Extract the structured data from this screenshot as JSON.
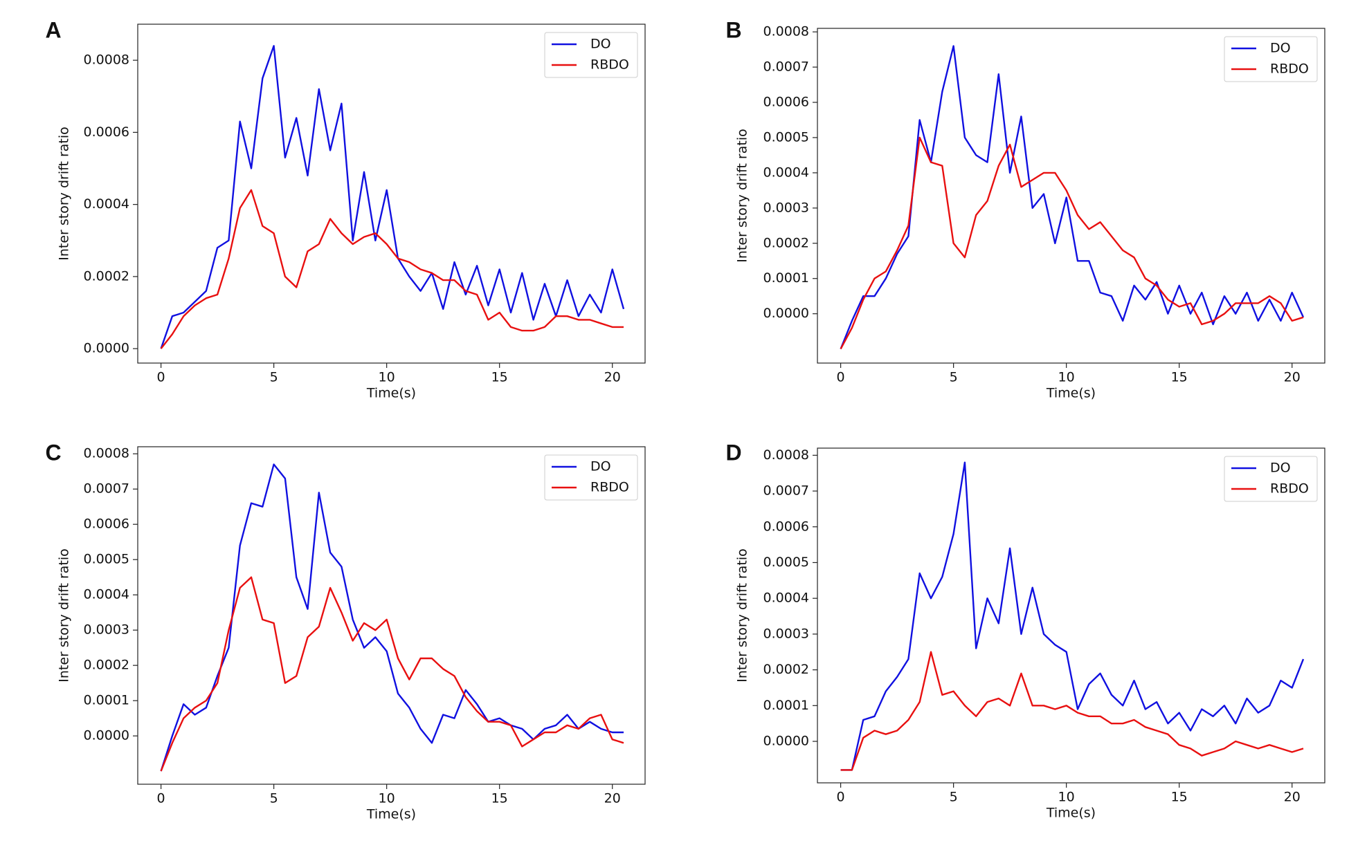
{
  "chart_data": [
    {
      "type": "line",
      "panel_label": "A",
      "xlabel": "Time(s)",
      "ylabel": "Inter story drift ratio",
      "xlim": [
        -1.03,
        21.45
      ],
      "ylim": [
        -4e-05,
        0.0009
      ],
      "xticks": [
        0,
        5,
        10,
        15,
        20
      ],
      "yticks": [
        {
          "value": 0,
          "label": "0.0000"
        },
        {
          "value": 0.0002,
          "label": "0.0002"
        },
        {
          "value": 0.0004,
          "label": "0.0004"
        },
        {
          "value": 0.0006,
          "label": "0.0006"
        },
        {
          "value": 0.0008,
          "label": "0.0008"
        }
      ],
      "legend": "upper right",
      "x": [
        0,
        0.5,
        1,
        1.5,
        2,
        2.5,
        3,
        3.5,
        4,
        4.5,
        5,
        5.5,
        6,
        6.5,
        7,
        7.5,
        8,
        8.5,
        9,
        9.5,
        10,
        10.5,
        11,
        11.5,
        12,
        12.5,
        13,
        13.5,
        14,
        14.5,
        15,
        15.5,
        16,
        16.5,
        17,
        17.5,
        18,
        18.5,
        19,
        19.5,
        20,
        20.5
      ],
      "series": [
        {
          "name": "DO",
          "color": "#1010e0",
          "values": [
            0,
            9e-05,
            0.0001,
            0.00013,
            0.00016,
            0.00028,
            0.0003,
            0.00063,
            0.0005,
            0.00075,
            0.00084,
            0.00053,
            0.00064,
            0.00048,
            0.00072,
            0.00055,
            0.00068,
            0.0003,
            0.00049,
            0.0003,
            0.00044,
            0.00025,
            0.0002,
            0.00016,
            0.00021,
            0.00011,
            0.00024,
            0.00015,
            0.00023,
            0.00012,
            0.00022,
            0.0001,
            0.00021,
            8e-05,
            0.00018,
            9e-05,
            0.00019,
            9e-05,
            0.00015,
            0.0001,
            0.00022,
            0.00011
          ]
        },
        {
          "name": "RBDO",
          "color": "#e81010",
          "values": [
            0,
            4e-05,
            9e-05,
            0.00012,
            0.00014,
            0.00015,
            0.00025,
            0.00039,
            0.00044,
            0.00034,
            0.00032,
            0.0002,
            0.00017,
            0.00027,
            0.00029,
            0.00036,
            0.00032,
            0.00029,
            0.00031,
            0.00032,
            0.00029,
            0.00025,
            0.00024,
            0.00022,
            0.00021,
            0.00019,
            0.00019,
            0.00016,
            0.00015,
            8e-05,
            0.0001,
            6e-05,
            5e-05,
            5e-05,
            6e-05,
            9e-05,
            9e-05,
            8e-05,
            8e-05,
            7e-05,
            6e-05,
            6e-05
          ]
        }
      ]
    },
    {
      "type": "line",
      "panel_label": "B",
      "xlabel": "Time(s)",
      "ylabel": "Inter story drift ratio",
      "xlim": [
        -1.03,
        21.45
      ],
      "ylim": [
        -0.00014,
        0.00081
      ],
      "xticks": [
        0,
        5,
        10,
        15,
        20
      ],
      "yticks": [
        {
          "value": 0,
          "label": "0.0000"
        },
        {
          "value": 0.0001,
          "label": "0.0001"
        },
        {
          "value": 0.0002,
          "label": "0.0002"
        },
        {
          "value": 0.0003,
          "label": "0.0003"
        },
        {
          "value": 0.0004,
          "label": "0.0004"
        },
        {
          "value": 0.0005,
          "label": "0.0005"
        },
        {
          "value": 0.0006,
          "label": "0.0006"
        },
        {
          "value": 0.0007,
          "label": "0.0007"
        },
        {
          "value": 0.0008,
          "label": "0.0008"
        }
      ],
      "legend": "upper right",
      "x": [
        0,
        0.5,
        1,
        1.5,
        2,
        2.5,
        3,
        3.5,
        4,
        4.5,
        5,
        5.5,
        6,
        6.5,
        7,
        7.5,
        8,
        8.5,
        9,
        9.5,
        10,
        10.5,
        11,
        11.5,
        12,
        12.5,
        13,
        13.5,
        14,
        14.5,
        15,
        15.5,
        16,
        16.5,
        17,
        17.5,
        18,
        18.5,
        19,
        19.5,
        20,
        20.5
      ],
      "series": [
        {
          "name": "DO",
          "color": "#1010e0",
          "values": [
            -0.0001,
            -2e-05,
            5e-05,
            5e-05,
            0.0001,
            0.00017,
            0.00022,
            0.00055,
            0.00043,
            0.00063,
            0.00076,
            0.0005,
            0.00045,
            0.00043,
            0.00068,
            0.0004,
            0.00056,
            0.0003,
            0.00034,
            0.0002,
            0.00033,
            0.00015,
            0.00015,
            6e-05,
            5e-05,
            -2e-05,
            8e-05,
            4e-05,
            9e-05,
            0,
            8e-05,
            0,
            6e-05,
            -3e-05,
            5e-05,
            0,
            6e-05,
            -2e-05,
            4e-05,
            -2e-05,
            6e-05,
            -1e-05
          ]
        },
        {
          "name": "RBDO",
          "color": "#e81010",
          "values": [
            -0.0001,
            -4e-05,
            4e-05,
            0.0001,
            0.00012,
            0.00018,
            0.00025,
            0.0005,
            0.00043,
            0.00042,
            0.0002,
            0.00016,
            0.00028,
            0.00032,
            0.00042,
            0.00048,
            0.00036,
            0.00038,
            0.0004,
            0.0004,
            0.00035,
            0.00028,
            0.00024,
            0.00026,
            0.00022,
            0.00018,
            0.00016,
            0.0001,
            8e-05,
            4e-05,
            2e-05,
            3e-05,
            -3e-05,
            -2e-05,
            0,
            3e-05,
            3e-05,
            3e-05,
            5e-05,
            3e-05,
            -2e-05,
            -1e-05
          ]
        }
      ]
    },
    {
      "type": "line",
      "panel_label": "C",
      "xlabel": "Time(s)",
      "ylabel": "Inter story drift ratio",
      "xlim": [
        -1.03,
        21.45
      ],
      "ylim": [
        -0.000137,
        0.00082
      ],
      "xticks": [
        0,
        5,
        10,
        15,
        20
      ],
      "yticks": [
        {
          "value": 0,
          "label": "0.0000"
        },
        {
          "value": 0.0001,
          "label": "0.0001"
        },
        {
          "value": 0.0002,
          "label": "0.0002"
        },
        {
          "value": 0.0003,
          "label": "0.0003"
        },
        {
          "value": 0.0004,
          "label": "0.0004"
        },
        {
          "value": 0.0005,
          "label": "0.0005"
        },
        {
          "value": 0.0006,
          "label": "0.0006"
        },
        {
          "value": 0.0007,
          "label": "0.0007"
        },
        {
          "value": 0.0008,
          "label": "0.0008"
        }
      ],
      "legend": "upper right",
      "x": [
        0,
        0.5,
        1,
        1.5,
        2,
        2.5,
        3,
        3.5,
        4,
        4.5,
        5,
        5.5,
        6,
        6.5,
        7,
        7.5,
        8,
        8.5,
        9,
        9.5,
        10,
        10.5,
        11,
        11.5,
        12,
        12.5,
        13,
        13.5,
        14,
        14.5,
        15,
        15.5,
        16,
        16.5,
        17,
        17.5,
        18,
        18.5,
        19,
        19.5,
        20,
        20.5
      ],
      "series": [
        {
          "name": "DO",
          "color": "#1010e0",
          "values": [
            -0.0001,
            0,
            9e-05,
            6e-05,
            8e-05,
            0.00017,
            0.00025,
            0.00054,
            0.00066,
            0.00065,
            0.00077,
            0.00073,
            0.00045,
            0.00036,
            0.00069,
            0.00052,
            0.00048,
            0.00033,
            0.00025,
            0.00028,
            0.00024,
            0.00012,
            8e-05,
            2e-05,
            -2e-05,
            6e-05,
            5e-05,
            0.00013,
            9e-05,
            4e-05,
            5e-05,
            3e-05,
            2e-05,
            -1e-05,
            2e-05,
            3e-05,
            6e-05,
            2e-05,
            4e-05,
            2e-05,
            1e-05,
            1e-05
          ]
        },
        {
          "name": "RBDO",
          "color": "#e81010",
          "values": [
            -0.0001,
            -2e-05,
            5e-05,
            8e-05,
            0.0001,
            0.00015,
            0.0003,
            0.00042,
            0.00045,
            0.00033,
            0.00032,
            0.00015,
            0.00017,
            0.00028,
            0.00031,
            0.00042,
            0.00035,
            0.00027,
            0.00032,
            0.0003,
            0.00033,
            0.00022,
            0.00016,
            0.00022,
            0.00022,
            0.00019,
            0.00017,
            0.00011,
            7e-05,
            4e-05,
            4e-05,
            3e-05,
            -3e-05,
            -1e-05,
            1e-05,
            1e-05,
            3e-05,
            2e-05,
            5e-05,
            6e-05,
            -1e-05,
            -2e-05
          ]
        }
      ]
    },
    {
      "type": "line",
      "panel_label": "D",
      "xlabel": "Time(s)",
      "ylabel": "Inter story drift ratio",
      "xlim": [
        -1.03,
        21.45
      ],
      "ylim": [
        -0.000116,
        0.00082
      ],
      "xticks": [
        0,
        5,
        10,
        15,
        20
      ],
      "yticks": [
        {
          "value": 0,
          "label": "0.0000"
        },
        {
          "value": 0.0001,
          "label": "0.0001"
        },
        {
          "value": 0.0002,
          "label": "0.0002"
        },
        {
          "value": 0.0003,
          "label": "0.0003"
        },
        {
          "value": 0.0004,
          "label": "0.0004"
        },
        {
          "value": 0.0005,
          "label": "0.0005"
        },
        {
          "value": 0.0006,
          "label": "0.0006"
        },
        {
          "value": 0.0007,
          "label": "0.0007"
        },
        {
          "value": 0.0008,
          "label": "0.0008"
        }
      ],
      "legend": "upper right",
      "x": [
        0,
        0.5,
        1,
        1.5,
        2,
        2.5,
        3,
        3.5,
        4,
        4.5,
        5,
        5.5,
        6,
        6.5,
        7,
        7.5,
        8,
        8.5,
        9,
        9.5,
        10,
        10.5,
        11,
        11.5,
        12,
        12.5,
        13,
        13.5,
        14,
        14.5,
        15,
        15.5,
        16,
        16.5,
        17,
        17.5,
        18,
        18.5,
        19,
        19.5,
        20,
        20.5
      ],
      "series": [
        {
          "name": "DO",
          "color": "#1010e0",
          "values": [
            -8e-05,
            -8e-05,
            6e-05,
            7e-05,
            0.00014,
            0.00018,
            0.00023,
            0.00047,
            0.0004,
            0.00046,
            0.00058,
            0.00078,
            0.00026,
            0.0004,
            0.00033,
            0.00054,
            0.0003,
            0.00043,
            0.0003,
            0.00027,
            0.00025,
            9e-05,
            0.00016,
            0.00019,
            0.00013,
            0.0001,
            0.00017,
            9e-05,
            0.00011,
            5e-05,
            8e-05,
            3e-05,
            9e-05,
            7e-05,
            0.0001,
            5e-05,
            0.00012,
            8e-05,
            0.0001,
            0.00017,
            0.00015,
            0.00023
          ]
        },
        {
          "name": "RBDO",
          "color": "#e81010",
          "values": [
            -8e-05,
            -8e-05,
            1e-05,
            3e-05,
            2e-05,
            3e-05,
            6e-05,
            0.00011,
            0.00025,
            0.00013,
            0.00014,
            0.0001,
            7e-05,
            0.00011,
            0.00012,
            0.0001,
            0.00019,
            0.0001,
            0.0001,
            9e-05,
            0.0001,
            8e-05,
            7e-05,
            7e-05,
            5e-05,
            5e-05,
            6e-05,
            4e-05,
            3e-05,
            2e-05,
            -1e-05,
            -2e-05,
            -4e-05,
            -3e-05,
            -2e-05,
            0,
            -1e-05,
            -2e-05,
            -1e-05,
            -2e-05,
            -3e-05,
            -2e-05
          ]
        }
      ]
    }
  ]
}
